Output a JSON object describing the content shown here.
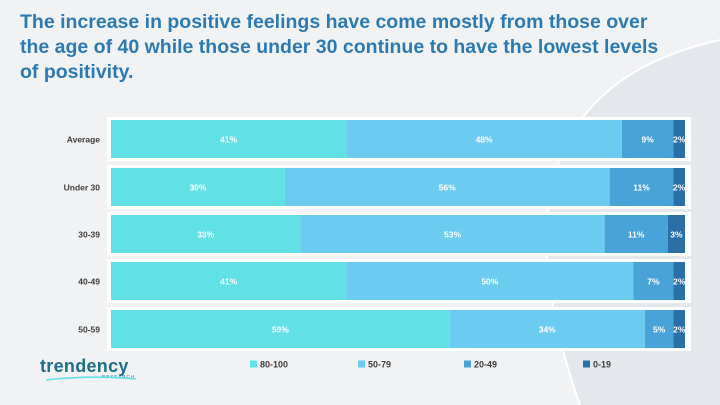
{
  "title": "The increase in positive feelings have come mostly from those over the age of 40 while those under 30 continue to have the lowest levels of positivity.",
  "logo": {
    "word": "trendency",
    "sub": "RESEARCH"
  },
  "colors": {
    "background": "#f1f2f4",
    "title": "#2d7ab3",
    "row_band": "#ffffff"
  },
  "chart_data": {
    "type": "bar",
    "orientation": "horizontal",
    "stacked": true,
    "normalized": "percent",
    "categories": [
      "Average",
      "Under 30",
      "30-39",
      "40-49",
      "50-59"
    ],
    "series": [
      {
        "name": "80-100",
        "color": "#61e1e5",
        "values": [
          41,
          30,
          33,
          41,
          59
        ]
      },
      {
        "name": "50-79",
        "color": "#6ccbf0",
        "values": [
          48,
          56,
          53,
          50,
          34
        ]
      },
      {
        "name": "20-49",
        "color": "#4aa3d8",
        "values": [
          9,
          11,
          11,
          7,
          5
        ]
      },
      {
        "name": "0-19",
        "color": "#2a6fa6",
        "values": [
          2,
          2,
          3,
          2,
          2
        ]
      }
    ],
    "data_labels": [
      [
        "41%",
        "48%",
        "9%",
        "2%"
      ],
      [
        "30%",
        "56%",
        "11%",
        "2%"
      ],
      [
        "33%",
        "53%",
        "11%",
        "3%"
      ],
      [
        "41%",
        "50%",
        "7%",
        "2%"
      ],
      [
        "59%",
        "34%",
        "5%",
        "2%"
      ]
    ],
    "legend_position": "bottom",
    "grid": false
  }
}
